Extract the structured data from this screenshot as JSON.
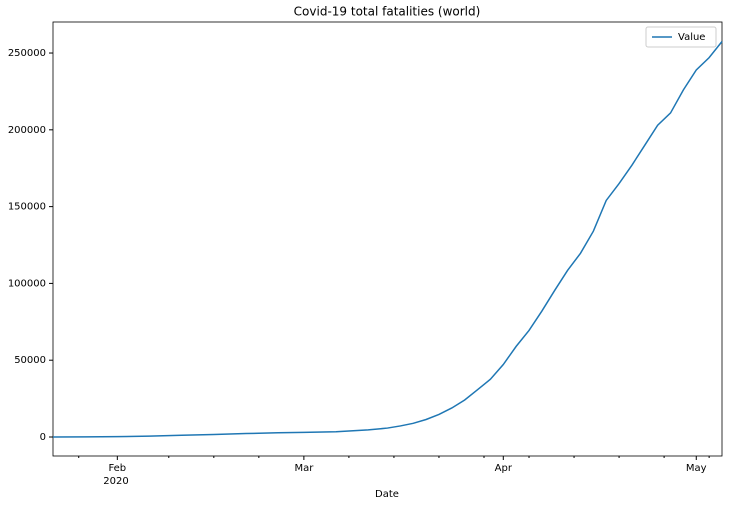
{
  "chart_data": {
    "type": "line",
    "title": "Covid-19 total fatalities (world)",
    "xlabel": "Date",
    "x": [
      0,
      5,
      10,
      15,
      20,
      25,
      30,
      35,
      39,
      44,
      49,
      52,
      54,
      56,
      58,
      60,
      62,
      64,
      66,
      68,
      70,
      72,
      74,
      76,
      78,
      80,
      82,
      84,
      86,
      88,
      90,
      92,
      94,
      96,
      98,
      100,
      102,
      104
    ],
    "series": [
      {
        "name": "Value",
        "color": "#1f77b4",
        "values": [
          17,
          82,
          259,
          565,
          1115,
          1666,
          2250,
          2770,
          2996,
          3460,
          4613,
          5820,
          7200,
          8900,
          11400,
          14700,
          18900,
          24100,
          30800,
          37600,
          47200,
          59000,
          69400,
          82000,
          95500,
          108500,
          119600,
          134000,
          154000,
          165000,
          177000,
          190000,
          203000,
          211000,
          226000,
          239000,
          247000,
          257500
        ]
      }
    ],
    "xlim": [
      0,
      104
    ],
    "xticks": [
      {
        "value": 10,
        "label": "Feb"
      },
      {
        "value": 39,
        "label": "Mar"
      },
      {
        "value": 70,
        "label": "Apr"
      },
      {
        "value": 100,
        "label": "May"
      }
    ],
    "x_year_label": "2020",
    "xminorticks": [
      4,
      18,
      25,
      32,
      46,
      53,
      60,
      67,
      74,
      81,
      88,
      95,
      102
    ],
    "ylim": [
      -12370,
      270200
    ],
    "yticks": [
      0,
      50000,
      100000,
      150000,
      200000,
      250000
    ],
    "legend": "upper right",
    "grid": false
  }
}
